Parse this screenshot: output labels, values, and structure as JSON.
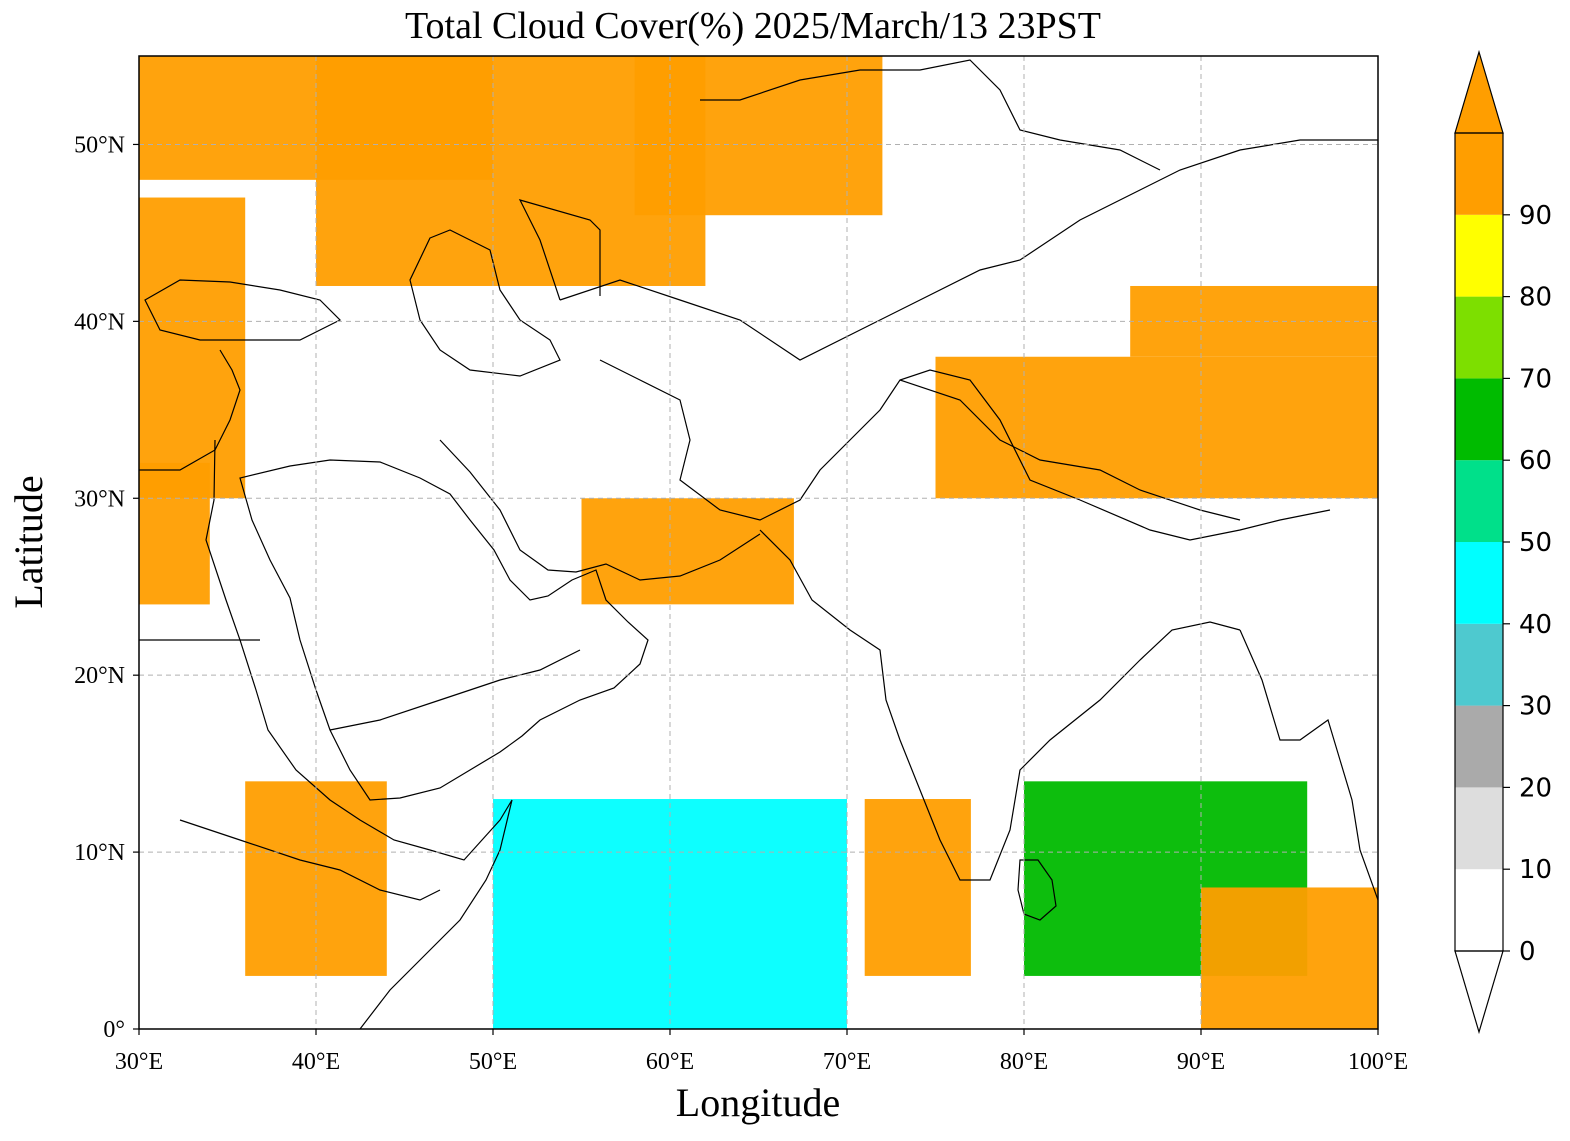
{
  "title": "Total Cloud Cover(%)  2025/March/13 23PST",
  "axes": {
    "xlabel": "Longitude",
    "ylabel": "Latitude",
    "lon_range": [
      30,
      100
    ],
    "lat_range": [
      0,
      55
    ],
    "x_ticks": [
      {
        "value": 30,
        "label": "30°E"
      },
      {
        "value": 40,
        "label": "40°E"
      },
      {
        "value": 50,
        "label": "50°E"
      },
      {
        "value": 60,
        "label": "60°E"
      },
      {
        "value": 70,
        "label": "70°E"
      },
      {
        "value": 80,
        "label": "80°E"
      },
      {
        "value": 90,
        "label": "90°E"
      },
      {
        "value": 100,
        "label": "100°E"
      }
    ],
    "y_ticks": [
      {
        "value": 0,
        "label": "0°"
      },
      {
        "value": 10,
        "label": "10°N"
      },
      {
        "value": 20,
        "label": "20°N"
      },
      {
        "value": 30,
        "label": "30°N"
      },
      {
        "value": 40,
        "label": "40°N"
      },
      {
        "value": 50,
        "label": "50°N"
      }
    ],
    "grid": true
  },
  "colorbar": {
    "extend": "both",
    "levels": [
      {
        "range": [
          0,
          10
        ],
        "color": "#ffffff"
      },
      {
        "range": [
          10,
          20
        ],
        "color": "#dddddd"
      },
      {
        "range": [
          20,
          30
        ],
        "color": "#aaaaaa"
      },
      {
        "range": [
          30,
          40
        ],
        "color": "#4ec9cf"
      },
      {
        "range": [
          40,
          50
        ],
        "color": "#00ffff"
      },
      {
        "range": [
          50,
          60
        ],
        "color": "#00e08a"
      },
      {
        "range": [
          60,
          70
        ],
        "color": "#00bb00"
      },
      {
        "range": [
          70,
          80
        ],
        "color": "#7ddf00"
      },
      {
        "range": [
          80,
          90
        ],
        "color": "#ffff00"
      },
      {
        "range": [
          90,
          100
        ],
        "color": "#ff9e00"
      }
    ],
    "tick_labels": [
      "0",
      "10",
      "20",
      "30",
      "40",
      "50",
      "60",
      "70",
      "80",
      "90"
    ]
  },
  "chart_data": {
    "type": "heatmap",
    "title": "Total Cloud Cover(%)  2025/March/13 23PST",
    "xlabel": "Longitude",
    "ylabel": "Latitude",
    "xlim": [
      30,
      100
    ],
    "ylim": [
      0,
      55
    ],
    "units": "%",
    "cloud_regions": [
      {
        "lon": [
          30,
          50
        ],
        "lat": [
          48,
          55
        ],
        "cover": 95
      },
      {
        "lon": [
          40,
          62
        ],
        "lat": [
          42,
          55
        ],
        "cover": 95
      },
      {
        "lon": [
          58,
          72
        ],
        "lat": [
          46,
          55
        ],
        "cover": 95
      },
      {
        "lon": [
          30,
          36
        ],
        "lat": [
          30,
          47
        ],
        "cover": 95
      },
      {
        "lon": [
          30,
          34
        ],
        "lat": [
          24,
          32
        ],
        "cover": 95
      },
      {
        "lon": [
          75,
          100
        ],
        "lat": [
          30,
          38
        ],
        "cover": 95
      },
      {
        "lon": [
          86,
          100
        ],
        "lat": [
          38,
          42
        ],
        "cover": 95
      },
      {
        "lon": [
          55,
          67
        ],
        "lat": [
          24,
          30
        ],
        "cover": 95
      },
      {
        "lon": [
          71,
          77
        ],
        "lat": [
          3,
          13
        ],
        "cover": 95
      },
      {
        "lon": [
          80,
          96
        ],
        "lat": [
          3,
          14
        ],
        "cover": 65
      },
      {
        "lon": [
          50,
          70
        ],
        "lat": [
          0,
          13
        ],
        "cover": 45
      },
      {
        "lon": [
          90,
          100
        ],
        "lat": [
          0,
          8
        ],
        "cover": 95
      },
      {
        "lon": [
          36,
          44
        ],
        "lat": [
          3,
          14
        ],
        "cover": 95
      },
      {
        "lon": [
          82,
          91
        ],
        "lat": [
          44,
          55
        ],
        "cover": 5
      },
      {
        "lon": [
          55,
          75
        ],
        "lat": [
          15,
          24
        ],
        "cover": 5
      },
      {
        "lon": [
          39,
          52
        ],
        "lat": [
          26,
          37
        ],
        "cover": 5
      }
    ]
  }
}
